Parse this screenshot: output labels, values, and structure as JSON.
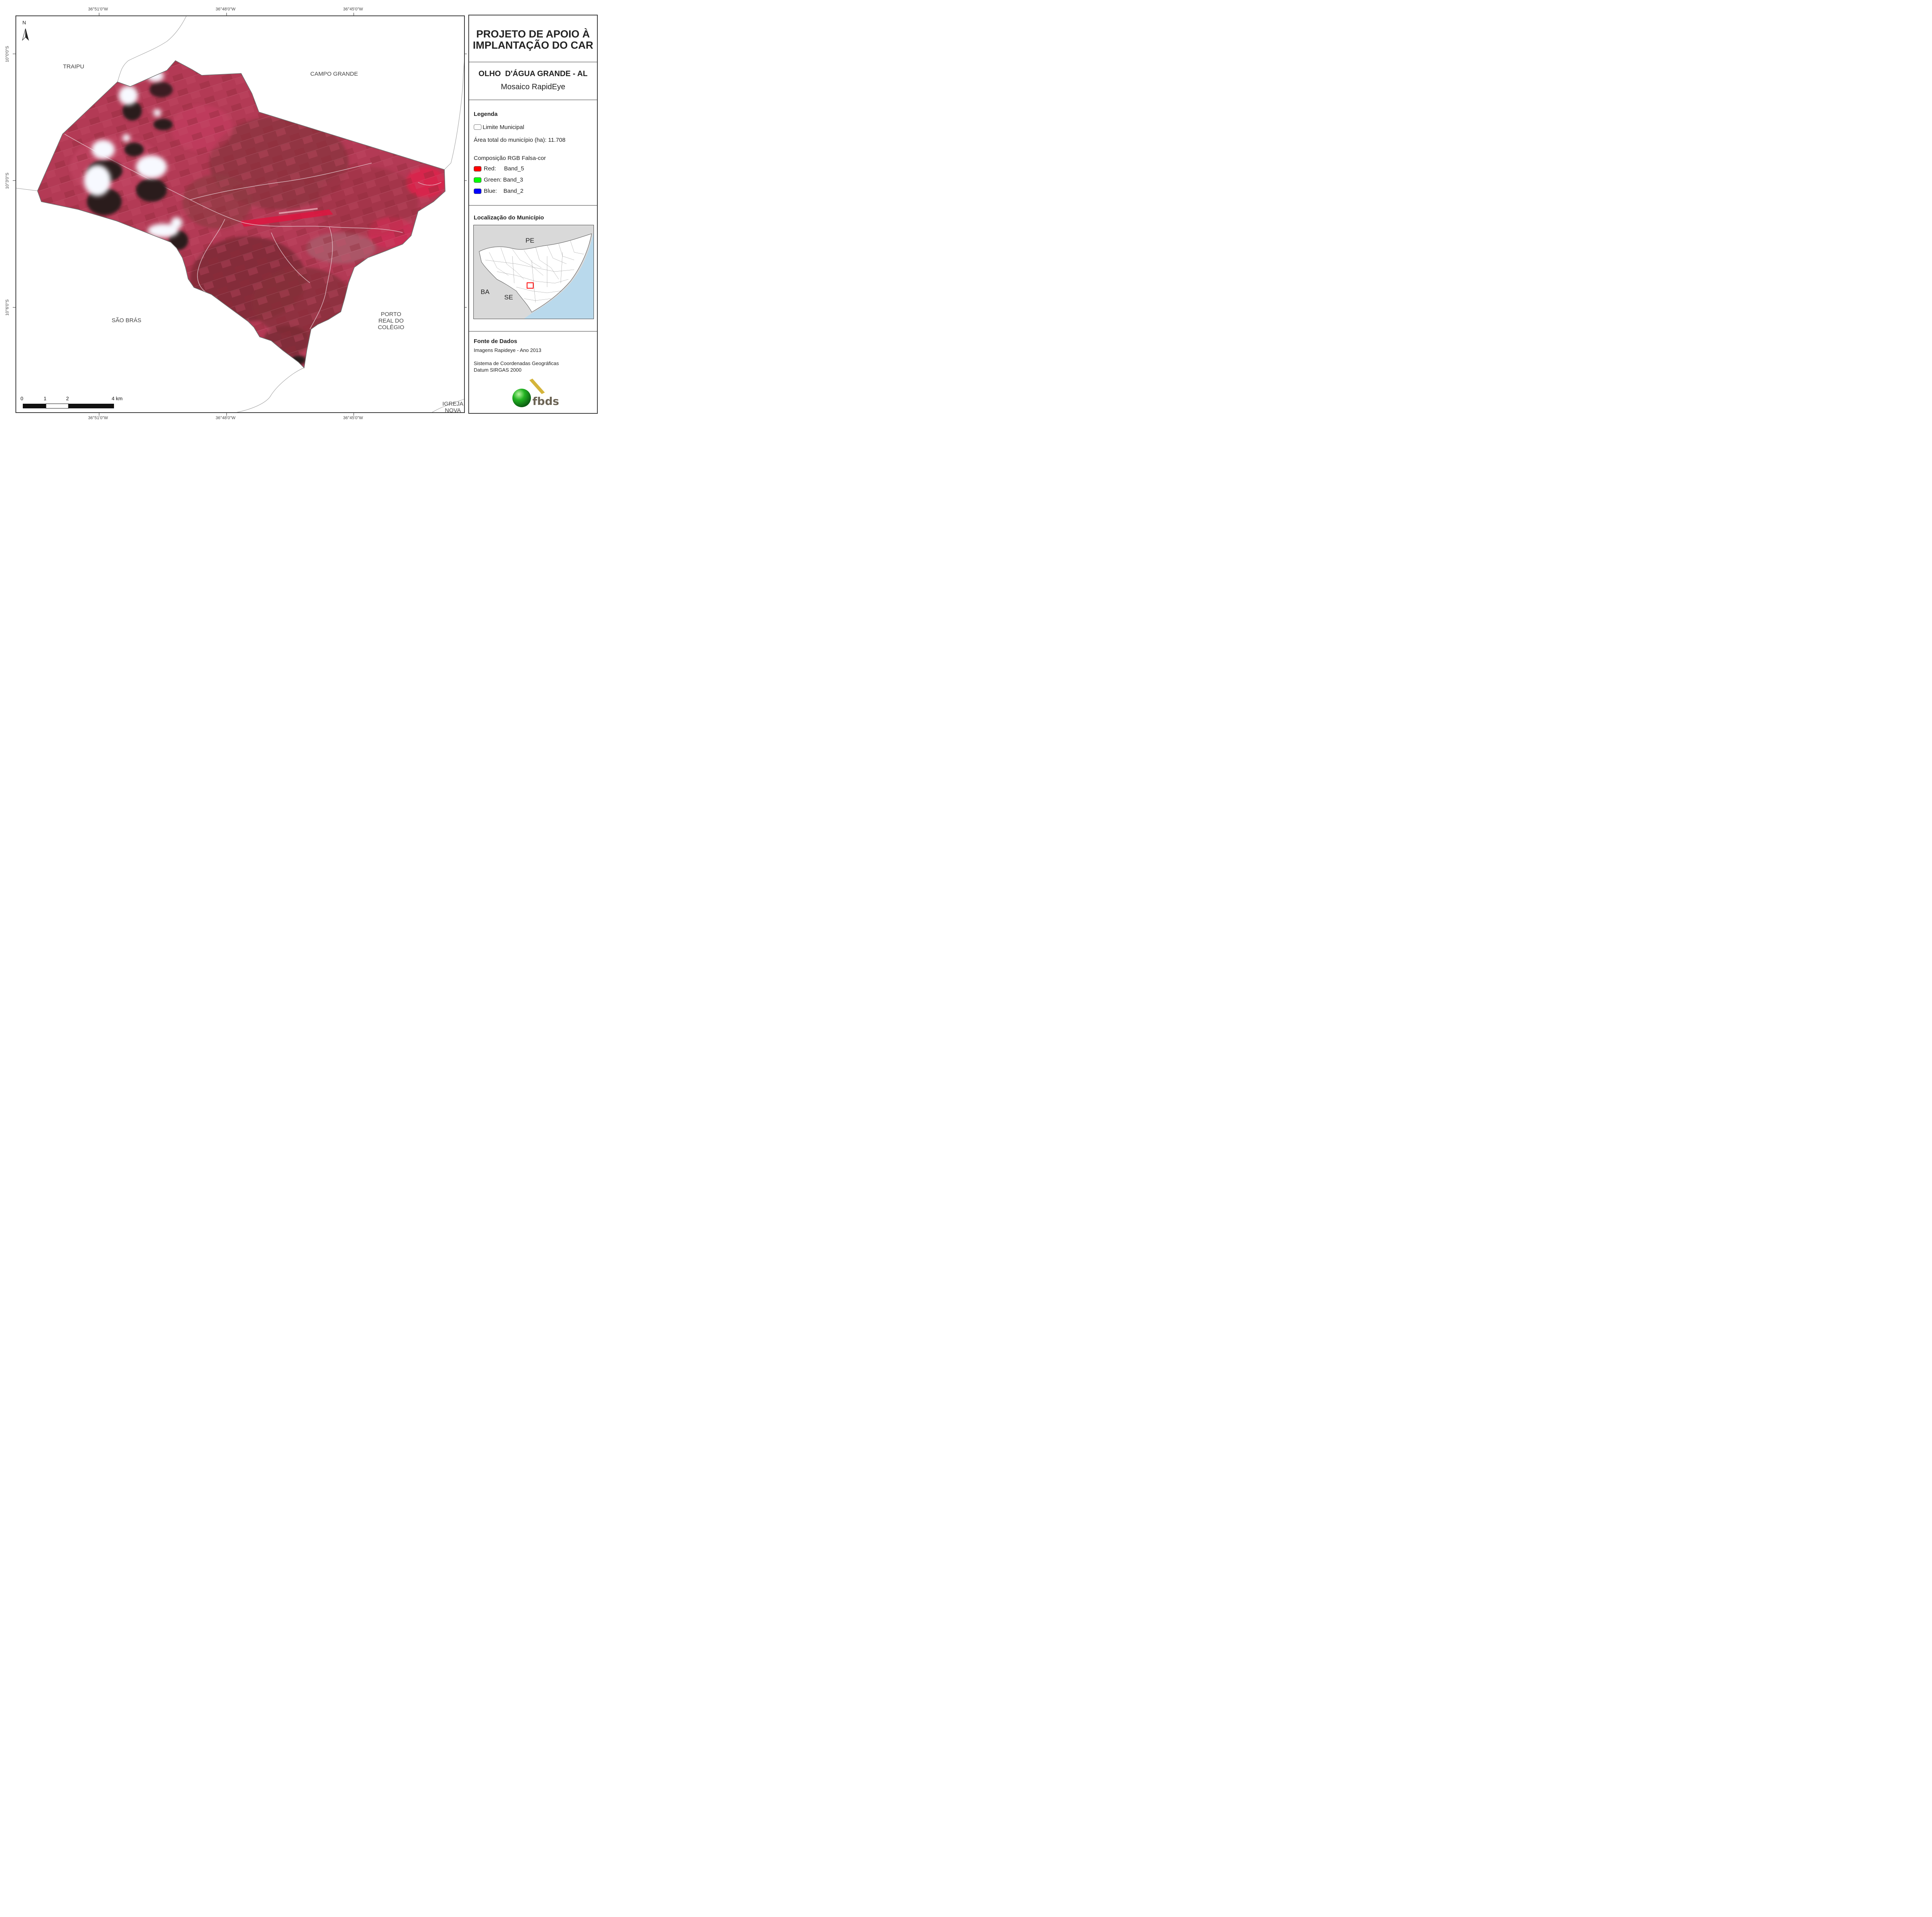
{
  "coordinates": {
    "lon_top": [
      "36°51'0\"W",
      "36°48'0\"W",
      "36°45'0\"W"
    ],
    "lon_bottom": [
      "36°51'0\"W",
      "36°48'0\"W",
      "36°45'0\"W"
    ],
    "lat_left": [
      "10°0'0\"S",
      "10°3'0\"S",
      "10°6'0\"S"
    ]
  },
  "map": {
    "north_label": "N",
    "places": {
      "traipu": "TRAIPU",
      "campo_grande": "CAMPO GRANDE",
      "sao_bras": "SÃO BRÁS",
      "porto_real_1": "PORTO",
      "porto_real_2": "REAL DO",
      "porto_real_3": "COLÉGIO",
      "igreja_nova_1": "IGREJA",
      "igreja_nova_2": "NOVA"
    },
    "scale_bar": {
      "labels": [
        "0",
        "1",
        "2",
        "4 km"
      ]
    }
  },
  "panel": {
    "title_line1": "PROJETO DE APOIO À",
    "title_line2": "IMPLANTAÇÃO DO CAR",
    "municipality": "OLHO  D'ÁGUA GRANDE - AL",
    "mosaic": "Mosaico RapidEye",
    "legend": {
      "heading": "Legenda",
      "limit_label": "Limite Municipal",
      "area_label": "Área total do município (ha): 11.708",
      "composition_label": "Composição RGB Falsa-cor",
      "bands": [
        {
          "label": "Red:     Band_5",
          "color": "#ff0000"
        },
        {
          "label": "Green: Band_3",
          "color": "#00ff00"
        },
        {
          "label": "Blue:    Band_2",
          "color": "#0000ff"
        }
      ]
    },
    "location": {
      "heading": "Localização do Município",
      "pe": "PE",
      "ba": "BA",
      "se": "SE"
    },
    "sources": {
      "heading": "Fonte de Dados",
      "line1": "Imagens Rapideye - Ano 2013",
      "line2": "Sistema de Coordenadas Geográficas",
      "line3": "Datum SIRGAS 2000"
    },
    "logo_text": "fbds"
  },
  "colors": {
    "vegetation": "#b8334e",
    "dark_field": "#7a2a32",
    "cloud": "#f4f7ff",
    "shadow": "#2a1a1e",
    "sea": "#b9d9ec",
    "inset_land": "#d9d9d9",
    "logo_green": "#1ea51e",
    "logo_gold": "#d4b43a"
  }
}
